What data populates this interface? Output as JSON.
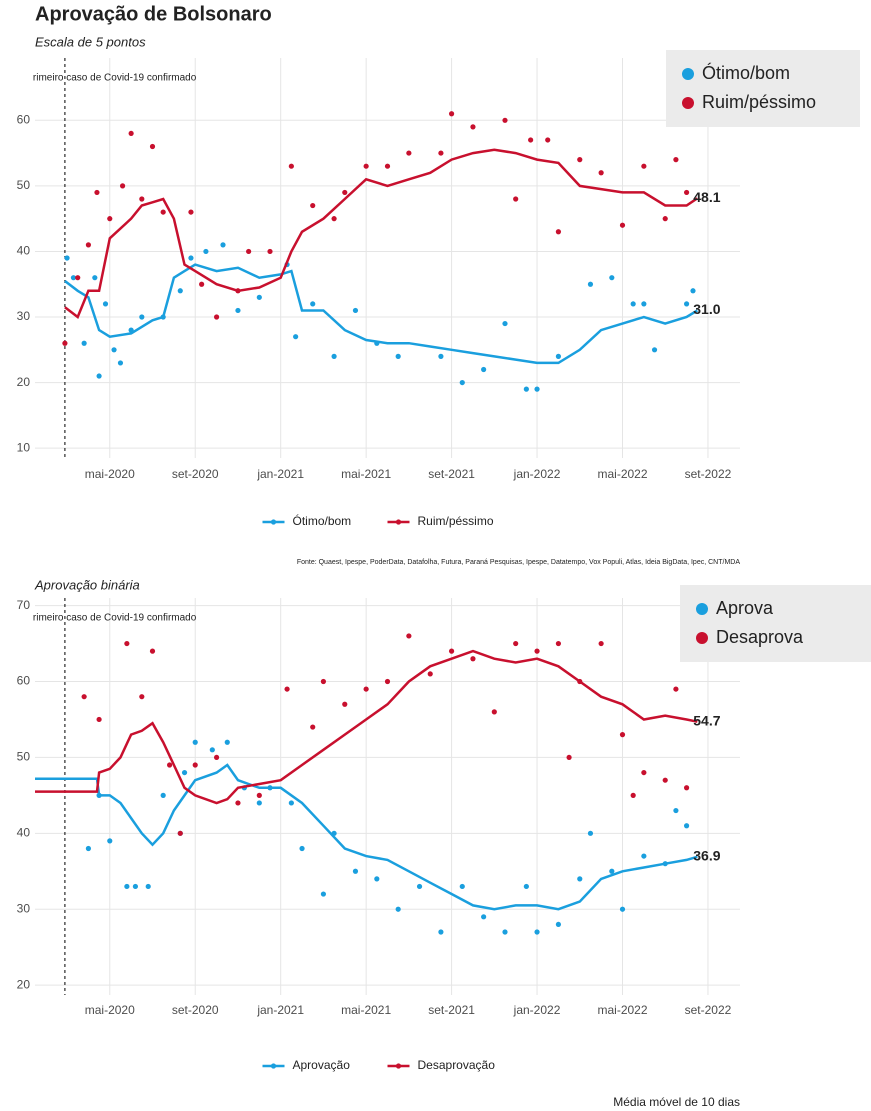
{
  "chart_data": [
    {
      "type": "line",
      "title": "Aprovação de Bolsonaro",
      "subtitle": "Escala de 5 pontos",
      "annotation": {
        "x": 1.9,
        "text": "rimeiro caso de Covid-19 confirmado"
      },
      "xlim": [
        0.5,
        33.5
      ],
      "xticks": [
        {
          "value": 4,
          "label": "mai-2020"
        },
        {
          "value": 8,
          "label": "set-2020"
        },
        {
          "value": 12,
          "label": "jan-2021"
        },
        {
          "value": 16,
          "label": "mai-2021"
        },
        {
          "value": 20,
          "label": "set-2021"
        },
        {
          "value": 24,
          "label": "jan-2022"
        },
        {
          "value": 28,
          "label": "mai-2022"
        },
        {
          "value": 32,
          "label": "set-2022"
        }
      ],
      "ylim": [
        8.5,
        69.5
      ],
      "yticks": [
        10,
        20,
        30,
        40,
        50,
        60
      ],
      "grid": true,
      "inset_legend": [
        "Ótimo/bom",
        "Ruim/péssimo"
      ],
      "series": [
        {
          "name": "Ótimo/bom",
          "color": "#1a9fde",
          "x": [
            1.9,
            2.5,
            3,
            3.5,
            4,
            5,
            6,
            6.5,
            7,
            7.5,
            8,
            9,
            10,
            11,
            12,
            12.5,
            13,
            14,
            15,
            16,
            17,
            18,
            19,
            20,
            21,
            22,
            23,
            24,
            25,
            26,
            27,
            28,
            29,
            30,
            31,
            31.5
          ],
          "values": [
            35.5,
            34,
            33,
            28,
            27,
            27.5,
            29.5,
            30,
            36,
            37,
            38,
            37,
            37.5,
            36,
            36.5,
            37,
            31,
            31,
            28,
            26.5,
            26,
            26,
            25.5,
            25,
            24.5,
            24,
            23.5,
            23,
            23,
            25,
            28,
            29,
            30,
            29,
            30,
            31
          ],
          "last_label": {
            "value": 31,
            "label": "31.0"
          },
          "points_x": [
            2,
            2.3,
            2.8,
            3.3,
            3.5,
            3.8,
            4.2,
            4.5,
            5,
            5.5,
            6.5,
            7.3,
            7.8,
            8.5,
            9.3,
            10,
            11,
            12.3,
            12.7,
            13.5,
            14.5,
            15.5,
            16.5,
            17.5,
            19.5,
            20.5,
            21.5,
            22.5,
            23.5,
            24,
            25,
            26.5,
            27.5,
            28.5,
            29,
            29.5,
            31,
            31.3
          ],
          "points_y": [
            39,
            36,
            26,
            36,
            21,
            32,
            25,
            23,
            28,
            30,
            30,
            34,
            39,
            40,
            41,
            31,
            33,
            38,
            27,
            32,
            24,
            31,
            26,
            24,
            24,
            20,
            22,
            29,
            19,
            19,
            24,
            35,
            36,
            32,
            32,
            25,
            32,
            34
          ]
        },
        {
          "name": "Ruim/péssimo",
          "color": "#c8102e",
          "x": [
            1.9,
            2.5,
            3,
            3.5,
            4,
            5,
            5.5,
            6,
            6.5,
            7,
            7.5,
            8,
            9,
            10,
            11,
            12,
            12.5,
            13,
            14,
            15,
            16,
            17,
            18,
            19,
            20,
            21,
            22,
            23,
            24,
            25,
            26,
            27,
            28,
            29,
            30,
            31,
            31.5
          ],
          "values": [
            31.5,
            30,
            34,
            34,
            42,
            45,
            47,
            47.5,
            48,
            45,
            38,
            37,
            35,
            34,
            34.5,
            36,
            40,
            43,
            45,
            48,
            51,
            50,
            51,
            52,
            54,
            55,
            55.5,
            55,
            54,
            53.5,
            50,
            49.5,
            49,
            49,
            47,
            47,
            48.1
          ],
          "last_label": {
            "value": 48.1,
            "label": "48.1"
          },
          "points_x": [
            1.9,
            2.5,
            3,
            3.4,
            4,
            4.6,
            5,
            5.5,
            6,
            6.5,
            7.8,
            8.3,
            9,
            10,
            10.5,
            11.5,
            12.5,
            13.5,
            14.5,
            15,
            16,
            17,
            18,
            19.5,
            20,
            21,
            22.5,
            23,
            23.7,
            24.5,
            25,
            26,
            27,
            28,
            29,
            30,
            30.5,
            31
          ],
          "points_y": [
            26,
            36,
            41,
            49,
            45,
            50,
            58,
            48,
            56,
            46,
            46,
            35,
            30,
            34,
            40,
            40,
            53,
            47,
            45,
            49,
            53,
            53,
            55,
            55,
            61,
            59,
            60,
            48,
            57,
            57,
            43,
            54,
            52,
            44,
            53,
            45,
            54,
            49
          ]
        }
      ]
    },
    {
      "type": "line",
      "subtitle": "Aprovação binária",
      "annotation": {
        "x": 1.9,
        "text": "rimeiro caso de Covid-19 confirmado"
      },
      "xlim": [
        0.5,
        33.5
      ],
      "xticks": [
        {
          "value": 4,
          "label": "mai-2020"
        },
        {
          "value": 8,
          "label": "set-2020"
        },
        {
          "value": 12,
          "label": "jan-2021"
        },
        {
          "value": 16,
          "label": "mai-2021"
        },
        {
          "value": 20,
          "label": "set-2021"
        },
        {
          "value": 24,
          "label": "jan-2022"
        },
        {
          "value": 28,
          "label": "mai-2022"
        },
        {
          "value": 32,
          "label": "set-2022"
        }
      ],
      "ylim": [
        18.7,
        71
      ],
      "yticks": [
        20,
        30,
        40,
        50,
        60,
        70
      ],
      "grid": true,
      "inset_legend": [
        "Aprova",
        "Desaprova"
      ],
      "series": [
        {
          "name": "Aprovação",
          "color": "#1a9fde",
          "x": [
            0.5,
            3.4,
            3.5,
            4,
            4.5,
            5,
            5.5,
            6,
            6.5,
            7,
            7.5,
            8,
            9,
            9.5,
            10,
            11,
            12,
            13,
            14,
            15,
            16,
            17,
            18,
            19,
            20,
            21,
            22,
            23,
            24,
            25,
            26,
            27,
            28,
            29,
            30,
            31,
            31.5
          ],
          "values": [
            47.2,
            47.2,
            45,
            45,
            44,
            42,
            40,
            38.5,
            40,
            43,
            45,
            47,
            48,
            49,
            47,
            46,
            46,
            44,
            41,
            38,
            37,
            36.5,
            35,
            33.5,
            32,
            30.5,
            30,
            30.5,
            30.5,
            30,
            31,
            34,
            35,
            35.5,
            36,
            36.5,
            36.9
          ],
          "last_label": {
            "value": 36.9,
            "label": "36.9"
          },
          "points_x": [
            3,
            3.5,
            4,
            4.8,
            5.2,
            5.8,
            6.5,
            7.3,
            7.5,
            8,
            8.8,
            9.5,
            10.3,
            11,
            11.5,
            12.5,
            13,
            14,
            14.5,
            15.5,
            16.5,
            17.5,
            18.5,
            19.5,
            20.5,
            21.5,
            22.5,
            23.5,
            24,
            25,
            26,
            26.5,
            27.5,
            28,
            29,
            30,
            30.5,
            31
          ],
          "points_y": [
            38,
            45,
            39,
            33,
            33,
            33,
            45,
            40,
            48,
            52,
            51,
            52,
            46,
            44,
            46,
            44,
            38,
            32,
            40,
            35,
            34,
            30,
            33,
            27,
            33,
            29,
            27,
            33,
            27,
            28,
            34,
            40,
            35,
            30,
            37,
            36,
            43,
            41
          ]
        },
        {
          "name": "Desaprovação",
          "color": "#c8102e",
          "x": [
            0.5,
            3.4,
            3.5,
            4,
            4.5,
            5,
            5.5,
            6,
            6.5,
            7,
            7.5,
            8,
            9,
            9.5,
            10,
            11,
            12,
            13,
            14,
            15,
            16,
            17,
            18,
            19,
            20,
            21,
            22,
            23,
            24,
            25,
            26,
            27,
            28,
            29,
            30,
            31,
            31.5
          ],
          "values": [
            45.5,
            45.5,
            48,
            48.5,
            50,
            53,
            53.5,
            54.5,
            52,
            49,
            46,
            45,
            44,
            44.5,
            46,
            46.5,
            47,
            49,
            51,
            53,
            55,
            57,
            60,
            62,
            63,
            64,
            63,
            62.5,
            63,
            62,
            60,
            58,
            57,
            55,
            55.5,
            55,
            54.7
          ],
          "last_label": {
            "value": 54.7,
            "label": "54.7"
          },
          "points_x": [
            2.8,
            3.5,
            4.8,
            5.5,
            6,
            6.8,
            7.3,
            8,
            9,
            10,
            11,
            12.3,
            13.5,
            14,
            15,
            16,
            17,
            18,
            19,
            20,
            21,
            22,
            23,
            24,
            25,
            25.5,
            26,
            27,
            28,
            28.5,
            29,
            30,
            30.5,
            31
          ],
          "points_y": [
            58,
            55,
            65,
            58,
            64,
            49,
            40,
            49,
            50,
            44,
            45,
            59,
            54,
            60,
            57,
            59,
            60,
            66,
            61,
            64,
            63,
            56,
            65,
            64,
            65,
            50,
            60,
            65,
            53,
            45,
            48,
            47,
            59,
            46
          ]
        }
      ]
    }
  ],
  "source": "Fonte: Quaest, Ipespe, PoderData, Datafolha, Futura, Paraná Pesquisas, Ipespe, Datatempo, Vox Populi, Atlas, Ideia BigData, Ipec, CNT/MDA",
  "caption": "Média móvel de 10 dias"
}
